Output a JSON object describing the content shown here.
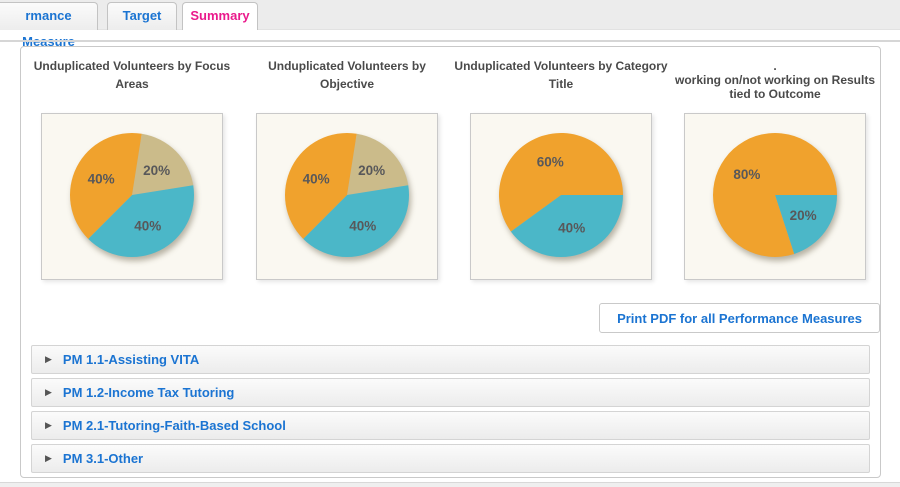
{
  "tabs": {
    "items": [
      {
        "label": "rmance Measure",
        "active": false
      },
      {
        "label": "Target",
        "active": false
      },
      {
        "label": "Summary",
        "active": true
      }
    ]
  },
  "chart_data": [
    {
      "type": "pie",
      "title": "Unduplicated Volunteers by Focus Areas",
      "title_display": "Unduplicated Volunteers by Focus\nAreas",
      "start_angle_deg": 9,
      "legend": "none",
      "slices": [
        {
          "label": "20%",
          "value": 20,
          "color": "#cbbb8a"
        },
        {
          "label": "40%",
          "value": 40,
          "color": "#4bb7c8"
        },
        {
          "label": "40%",
          "value": 40,
          "color": "#f0a22d"
        }
      ]
    },
    {
      "type": "pie",
      "title": "Unduplicated Volunteers by Objective",
      "title_display": "Unduplicated Volunteers by\nObjective",
      "start_angle_deg": 9,
      "legend": "none",
      "slices": [
        {
          "label": "20%",
          "value": 20,
          "color": "#cbbb8a"
        },
        {
          "label": "40%",
          "value": 40,
          "color": "#4bb7c8"
        },
        {
          "label": "40%",
          "value": 40,
          "color": "#f0a22d"
        }
      ]
    },
    {
      "type": "pie",
      "title": "Unduplicated Volunteers by Category Title",
      "title_display": "Unduplicated Volunteers by Category\nTitle",
      "start_angle_deg": 90,
      "legend": "none",
      "slices": [
        {
          "label": "40%",
          "value": 40,
          "color": "#4bb7c8"
        },
        {
          "label": "60%",
          "value": 60,
          "color": "#f0a22d"
        }
      ]
    },
    {
      "type": "pie",
      "title": "working on/not working on Results tied to Outcome",
      "title_display": ".\nworking on/not working on Results\ntied to Outcome",
      "start_angle_deg": 90,
      "legend": "none",
      "slices": [
        {
          "label": "20%",
          "value": 20,
          "color": "#4bb7c8"
        },
        {
          "label": "80%",
          "value": 80,
          "color": "#f0a22d"
        }
      ]
    }
  ],
  "actions": {
    "print_pdf_label": "Print PDF for all Performance Measures"
  },
  "accordion": {
    "items": [
      {
        "label": "PM 1.1-Assisting VITA"
      },
      {
        "label": "PM 1.2-Income Tax Tutoring"
      },
      {
        "label": "PM 2.1-Tutoring-Faith-Based School"
      },
      {
        "label": "PM 3.1-Other"
      }
    ]
  },
  "icons": {
    "accordion_arrow": "▶"
  },
  "colors": {
    "tab_blue": "#1b74d2",
    "active_tab_pink": "#ea1a8c",
    "pie_orange": "#f0a22d",
    "pie_tan": "#cbbb8a",
    "pie_teal": "#4bb7c8",
    "pie_label": "#58585a",
    "chart_box_bg": "#faf8f1"
  }
}
